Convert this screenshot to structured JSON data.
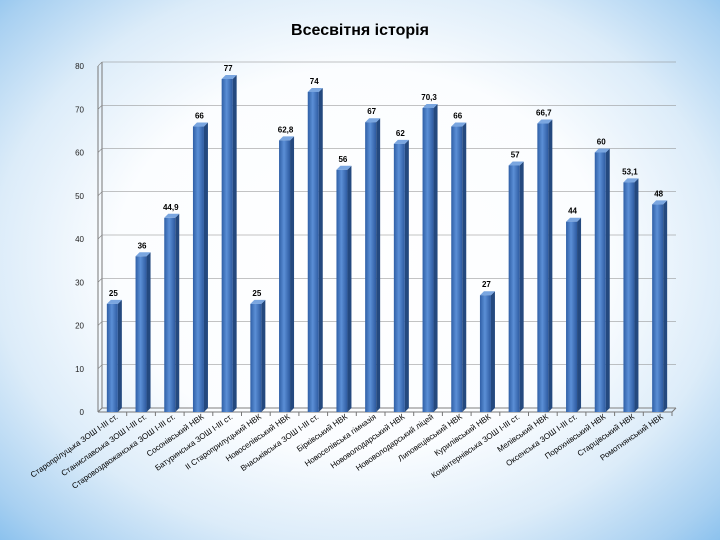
{
  "chart_data": {
    "type": "bar",
    "title": "Всесвітня історія",
    "xlabel": "",
    "ylabel": "",
    "ylim": [
      0,
      80
    ],
    "yticks": [
      0,
      10,
      20,
      30,
      40,
      50,
      60,
      70,
      80
    ],
    "grid": true,
    "legend": "none",
    "bar_color": "#3a6db6",
    "categories": [
      "Старопрілуцька ЗОШ І-ІІІ ст.",
      "Станиславська ЗОШ І-ІІІ ст.",
      "Старовоздвожанська ЗОШ І-ІІІ ст.",
      "Сосонівський НВК",
      "Батуринська ЗОШ І-ІІІ ст.",
      "ІІ Староприлуцький НВК",
      "Новоселівський НВК",
      "Вчаськівська ЗОШ І-ІІІ ст.",
      "Бірківський НВК",
      "Новоселівська гімназія",
      "Нововолодарський НВК",
      "Нововолодарський ліцей",
      "Липовецівський НВК",
      "Курилівський НВК",
      "Комінтернівська ЗОШ І-ІІІ ст.",
      "Мелівський НВК",
      "Оксенська ЗОШ І-ІІІ ст.",
      "Порохнівський НВК",
      "Старцівський НВК",
      "Ромотнянський НВК"
    ],
    "values": [
      25,
      36,
      44.9,
      66,
      77,
      25,
      62.8,
      74,
      56,
      67,
      62,
      70.3,
      66,
      27,
      57,
      66.7,
      44,
      60,
      53.1,
      48
    ],
    "value_labels": [
      "25",
      "36",
      "44,9",
      "66",
      "77",
      "25",
      "62,8",
      "74",
      "56",
      "67",
      "62",
      "70,3",
      "66",
      "27",
      "57",
      "66,7",
      "44",
      "60",
      "53,1",
      "48"
    ]
  }
}
